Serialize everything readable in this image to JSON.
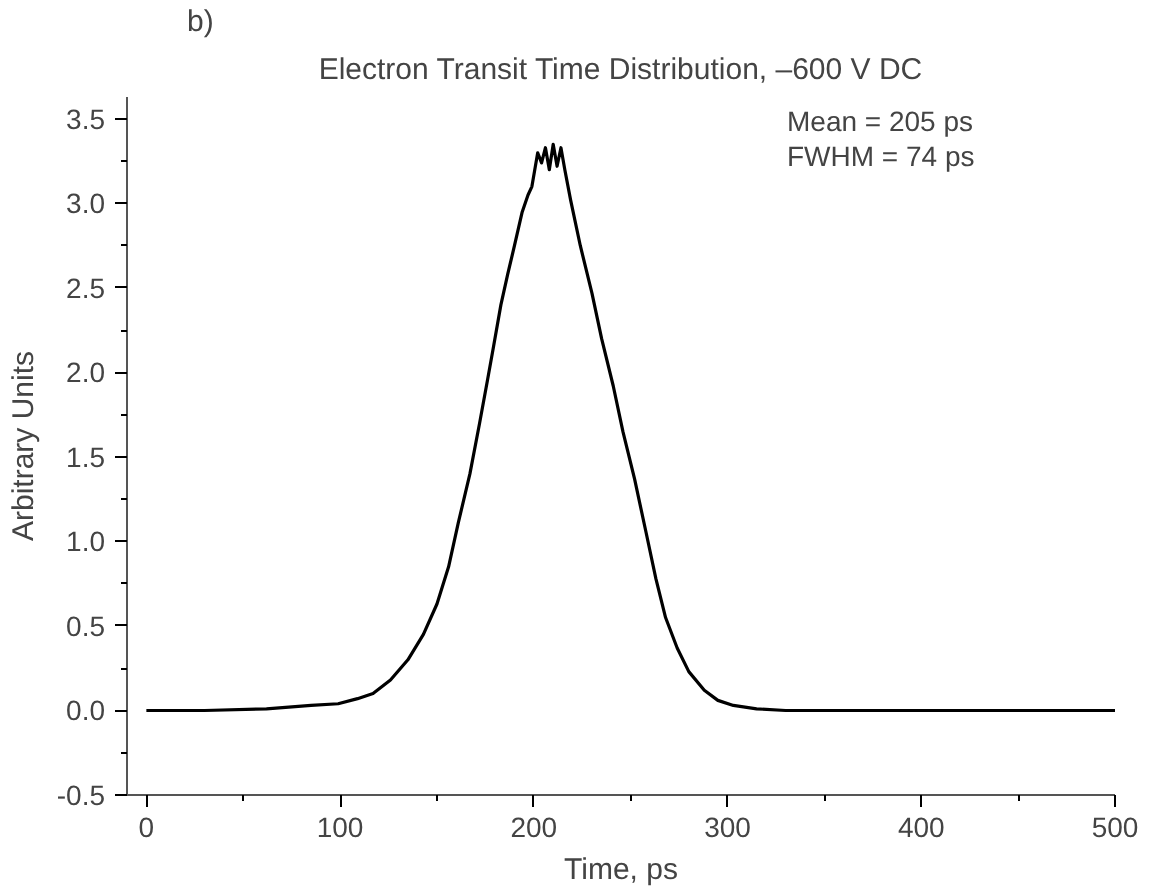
{
  "chart_data": {
    "type": "line",
    "title": "Electron Transit Time Distribution, –600 V DC",
    "xlabel": "Time, ps",
    "ylabel": "Arbitrary Units",
    "annotations": [
      "b)",
      "Mean = 205 ps\nFWHM = 74 ps"
    ],
    "x": [
      0,
      30,
      62,
      85,
      99,
      109,
      117,
      126,
      135,
      143,
      150,
      156,
      161,
      167,
      172,
      176,
      179,
      183,
      186.5,
      190,
      194,
      197,
      199,
      202,
      204,
      206,
      208,
      210,
      212,
      214,
      216,
      219,
      224,
      230,
      235,
      241,
      246,
      252,
      258,
      263,
      268,
      274,
      280,
      288,
      295,
      303,
      315,
      330,
      360,
      400,
      450,
      500
    ],
    "series": [
      {
        "color": "#000000",
        "values": [
          0,
          0,
          0.01,
          0.03,
          0.04,
          0.07,
          0.1,
          0.18,
          0.3,
          0.45,
          0.63,
          0.85,
          1.11,
          1.4,
          1.7,
          1.95,
          2.14,
          2.4,
          2.58,
          2.75,
          2.95,
          3.05,
          3.1,
          3.3,
          3.24,
          3.33,
          3.2,
          3.35,
          3.22,
          3.33,
          3.2,
          3.02,
          2.75,
          2.47,
          2.2,
          1.92,
          1.65,
          1.37,
          1.05,
          0.78,
          0.55,
          0.37,
          0.23,
          0.12,
          0.06,
          0.03,
          0.01,
          0,
          0,
          0,
          0,
          0
        ]
      }
    ],
    "xlim": [
      -10,
      500
    ],
    "ylim": [
      -0.5,
      3.63
    ],
    "xticks": [
      0,
      100,
      200,
      300,
      400,
      500
    ],
    "yticks": [
      -0.5,
      {
        "value": 0,
        "label": "0.0"
      },
      0.5,
      {
        "value": 1,
        "label": "1.0"
      },
      1.5,
      {
        "value": 2,
        "label": "2.0"
      },
      2.5,
      {
        "value": 3,
        "label": "3.0"
      },
      3.5
    ],
    "grid": false,
    "line_style": "solid",
    "marker": "none"
  }
}
